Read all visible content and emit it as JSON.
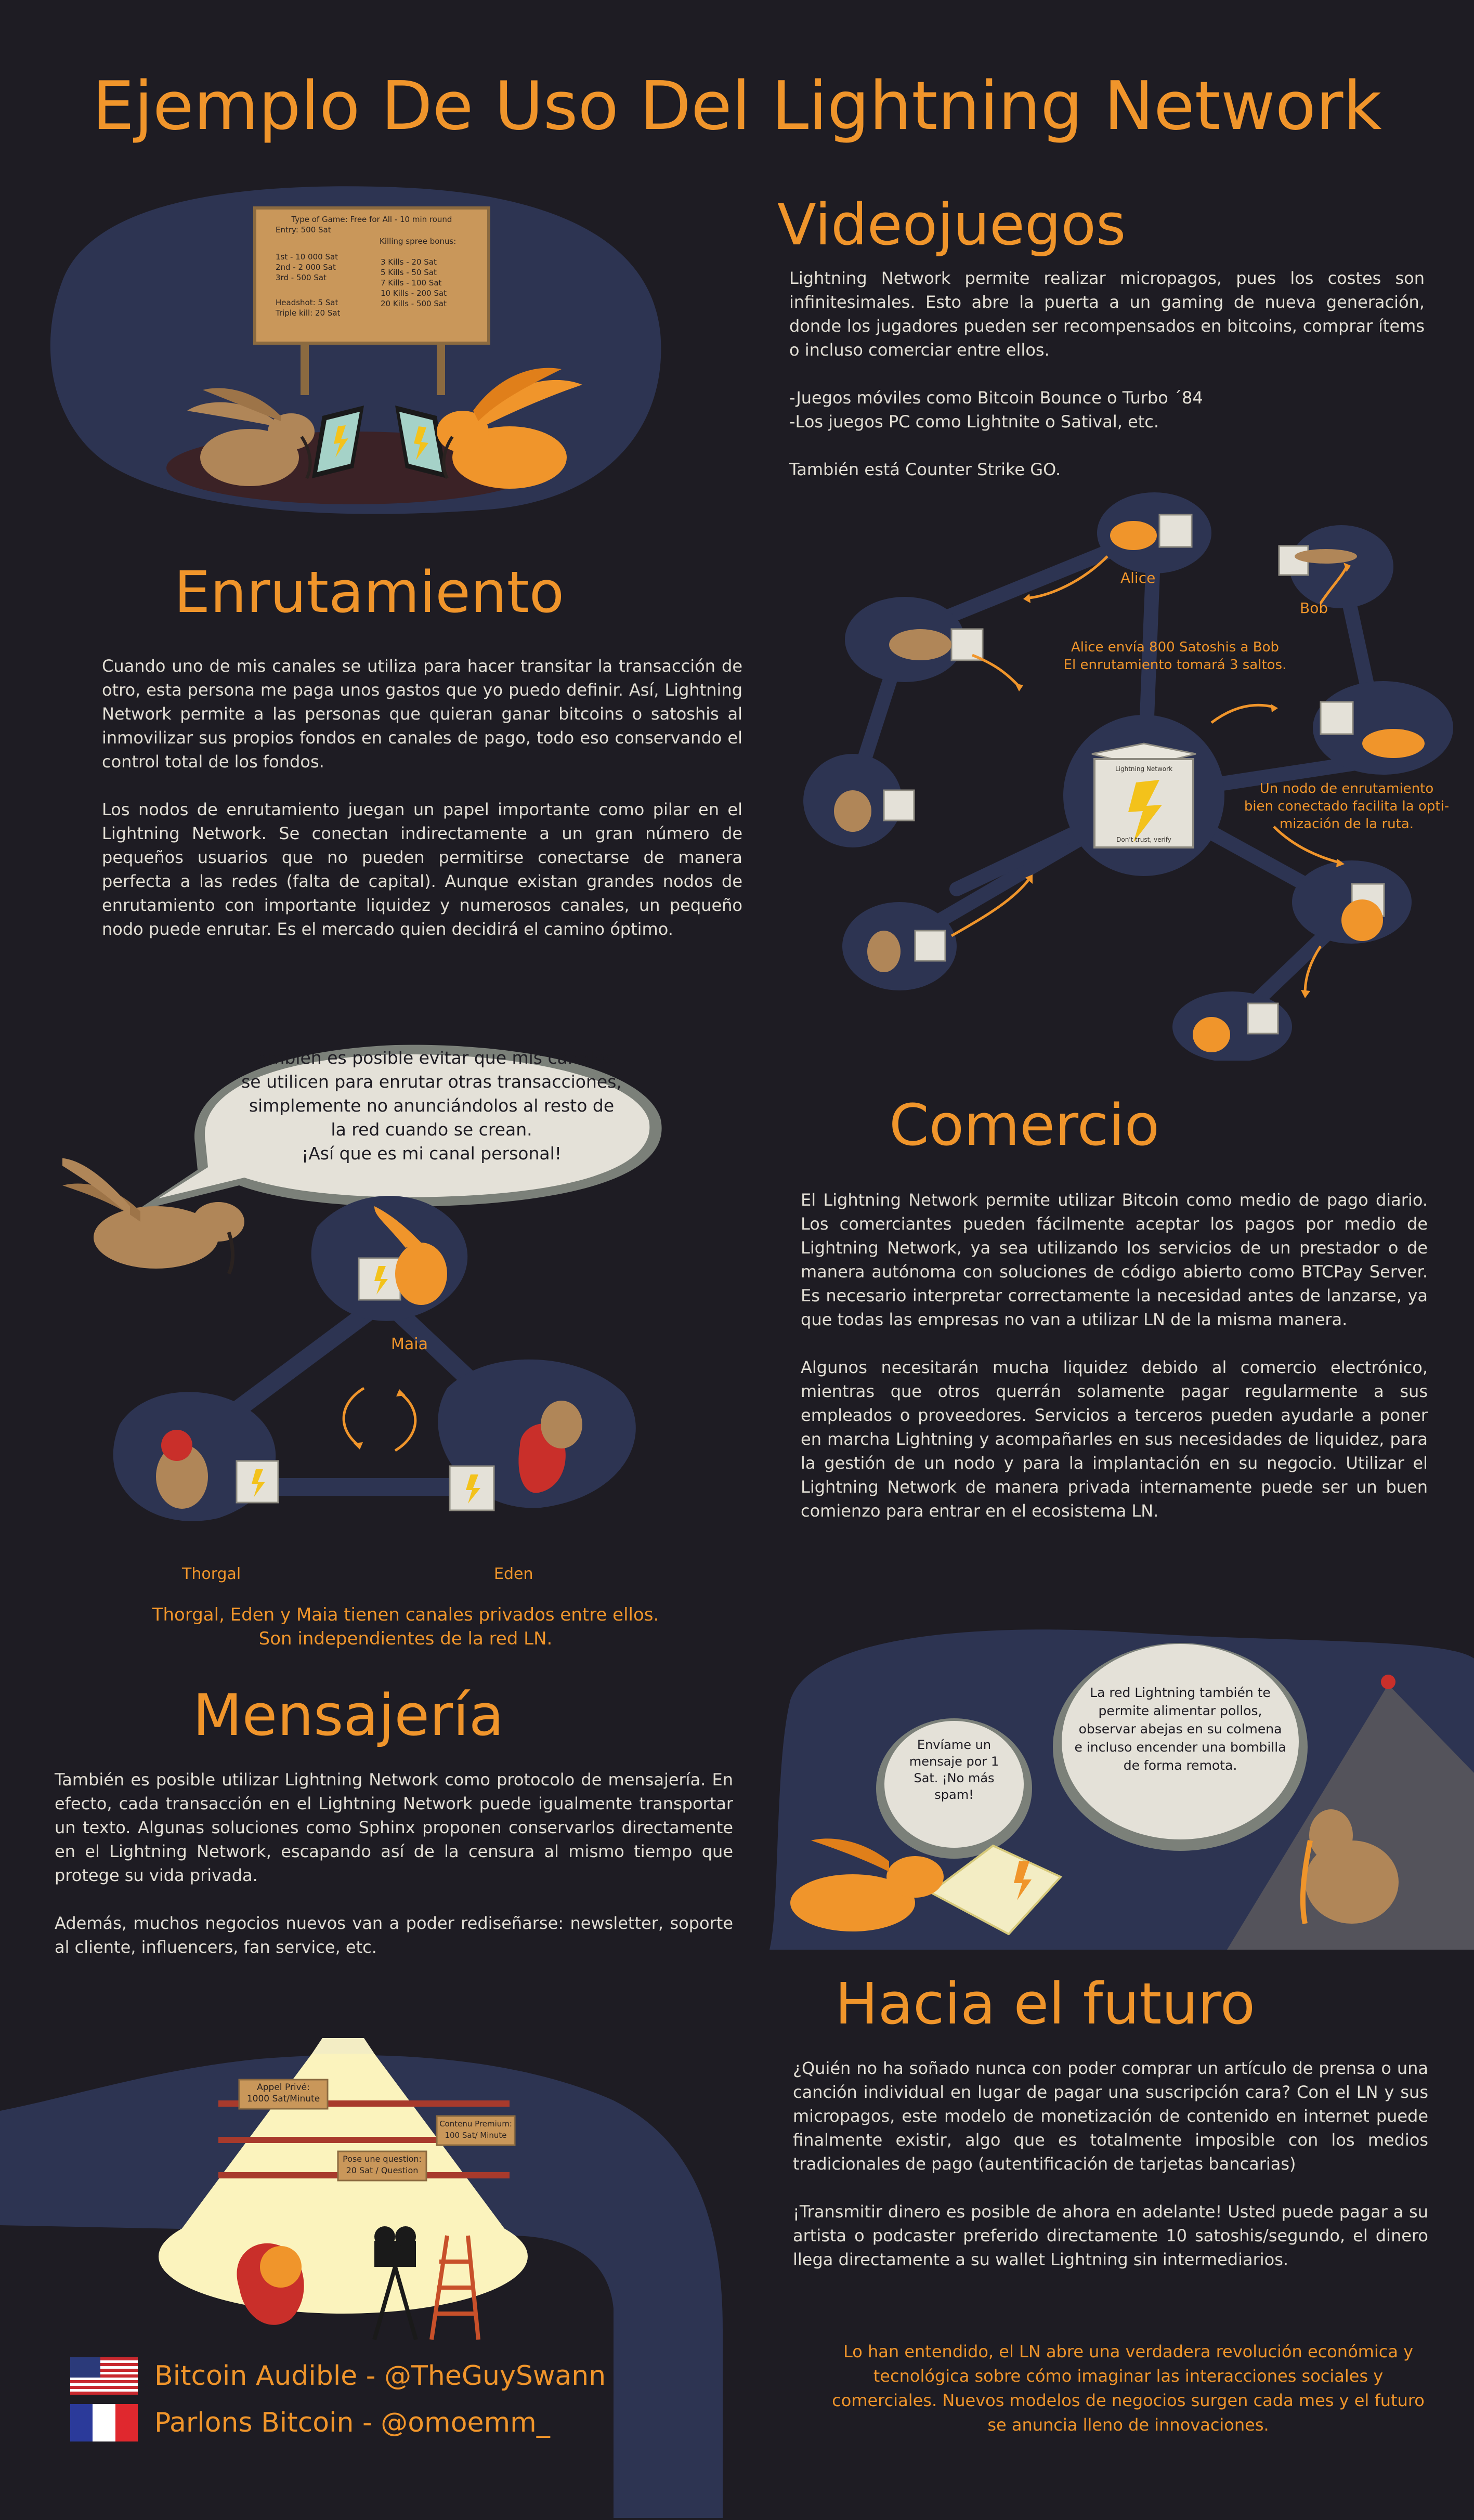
{
  "page": {
    "title": "Ejemplo De Uso Del Lightning Network"
  },
  "sign": {
    "line1": "Type of Game: Free for All - 10 min round",
    "entry": "Entry: 500 Sat",
    "kill_head": "Killing spree bonus:",
    "r1": "1st - 10 000 Sat",
    "r2": "2nd - 2 000 Sat",
    "r3": "3rd - 500 Sat",
    "k1": "3 Kills - 20 Sat",
    "k2": "5 Kills - 50 Sat",
    "k3": "7 Kills - 100 Sat",
    "k4": "10 Kills - 200 Sat",
    "k5": "20 Kills - 500 Sat",
    "h1": "Headshot: 5 Sat",
    "h2": "Triple kill: 20 Sat"
  },
  "videojuegos": {
    "heading": "Videojuegos",
    "p1": " Lightning Network permite realizar micropagos, pues los costes son infinitesimales. Esto abre la puerta a un gaming de nueva generación, donde los jugadores pueden ser recompensados en bitcoins, comprar ítems o incluso comerciar entre ellos.",
    "l1": "-Juegos móviles como Bitcoin Bounce o Turbo ´84",
    "l2": "-Los juegos PC como Lightnite o Satival, etc.",
    "p3": "También está Counter Strike GO."
  },
  "network": {
    "alice": "Alice",
    "bob": "Bob",
    "note1a": "Alice envía 800 Satoshis a Bob",
    "note1b": "El enrutamiento tomará 3 saltos.",
    "note2a": "Un nodo de enrutamiento",
    "note2b": "bien conectado facilita la opti-",
    "note2c": "mización de la ruta.",
    "node_label": "Lightning Network",
    "node_caption": "Don't trust, verify"
  },
  "enrutamiento": {
    "heading": "Enrutamiento",
    "p1": "Cuando uno de mis canales se utiliza para hacer transitar la transacción de otro, esta persona me paga unos gastos que yo puedo definir. Así, Lightning Network permite a las personas que quieran ganar bitcoins o satoshis al inmovilizar sus propios fondos en canales de pago, todo eso conservando el control total de los fondos.",
    "p2": "Los nodos de enrutamiento juegan un papel importante como pilar en el Lightning Network. Se conectan indirectamente a un gran número de pequeños usuarios que no pueden permitirse conectarse de manera perfecta a las redes (falta de capital). Aunque existan grandes nodos de enrutamiento con importante liquidez y numerosos canales, un pequeño nodo puede enrutar. Es el mercado quien decidirá el camino óptimo."
  },
  "private": {
    "bubble": "También es posible evitar que mis canales se utilicen para enrutar otras transacciones, simplemente no anunciándolos al resto de la red cuando se crean.",
    "bubble2": "¡Así que es mi canal personal!",
    "maia": "Maia",
    "thorgal": "Thorgal",
    "eden": "Eden",
    "caption1": "Thorgal, Eden y Maia tienen canales privados entre ellos.",
    "caption2": "Son independientes de la red LN."
  },
  "comercio": {
    "heading": "Comercio",
    "p1": "El Lightning Network permite utilizar Bitcoin como medio de pago diario. Los comerciantes pueden fácilmente aceptar los pagos por medio de Lightning Network, ya sea utilizando los servicios de un prestador o de manera autónoma con soluciones de código abierto como BTCPay Server. Es necesario interpretar correctamente la necesidad antes de lanzarse, ya que todas las empresas no van a utilizar LN de la misma manera.",
    "p2": "Algunos necesitarán mucha liquidez debido al comercio electrónico, mientras que otros querrán solamente pagar regularmente a sus empleados o proveedores. Servicios a terceros pueden ayudarle a poner en marcha Lightning y acompañarles en sus necesidades de liquidez, para la gestión de un nodo y para la implantación en su negocio. Utilizar el Lightning Network de manera privada internamente puede ser un buen comienzo para entrar en el ecosistema LN."
  },
  "mensajeria": {
    "heading": "Mensajería",
    "p1": "También es posible utilizar Lightning Network como protocolo de mensajería. En efecto, cada transacción en el Lightning Network puede igualmente transportar un texto. Algunas soluciones como Sphinx proponen conservarlos directamente en el Lightning Network, escapando así de la censura al mismo tiempo que protege su vida privada.",
    "p2": "Además, muchos negocios nuevos van a poder rediseñarse: newsletter, soporte al cliente, influencers, fan service, etc."
  },
  "future_scene": {
    "bubble1": "Envíame un mensaje por 1 Sat. ¡No más spam!",
    "bubble2": "La red Lightning también te permite alimentar pollos, observar abejas en su colmena e incluso encender una bombilla de forma remota."
  },
  "futuro": {
    "heading": "Hacia el futuro",
    "p1": "¿Quién no ha soñado nunca con poder comprar un artículo de prensa o una canción individual en lugar de pagar una suscripción cara? Con el LN y sus micropagos, este modelo de monetización de contenido en internet puede finalmente existir, algo que es totalmente imposible con los medios tradicionales de pago (autentificación de tarjetas bancarias)",
    "p2": "¡Transmitir dinero es posible de ahora en adelante! Usted puede pagar a su artista o podcaster preferido directamente 10 satoshis/segundo, el dinero llega directamente a su wallet Lightning sin intermediarios.",
    "conclusion": "Lo han entendido, el LN abre una verdadera revolución económica y tecnológica sobre cómo imaginar las interacciones sociales y comerciales. Nuevos modelos de negocios surgen cada mes y el futuro se anuncia lleno de innovaciones."
  },
  "library": {
    "sign1a": "Appel Privé:",
    "sign1b": "1000 Sat/Minute",
    "sign2a": "Contenu Premium:",
    "sign2b": "100 Sat/ Minute",
    "sign3a": "Pose une question:",
    "sign3b": "20 Sat / Question"
  },
  "credits": {
    "c1": "Bitcoin Audible - @TheGuySwann",
    "c2": "Parlons Bitcoin - @omoemm_"
  },
  "colors": {
    "background": "#1e1c23",
    "accent": "#f0952b",
    "blob": "#2d3452",
    "text": "#e2ded4"
  }
}
